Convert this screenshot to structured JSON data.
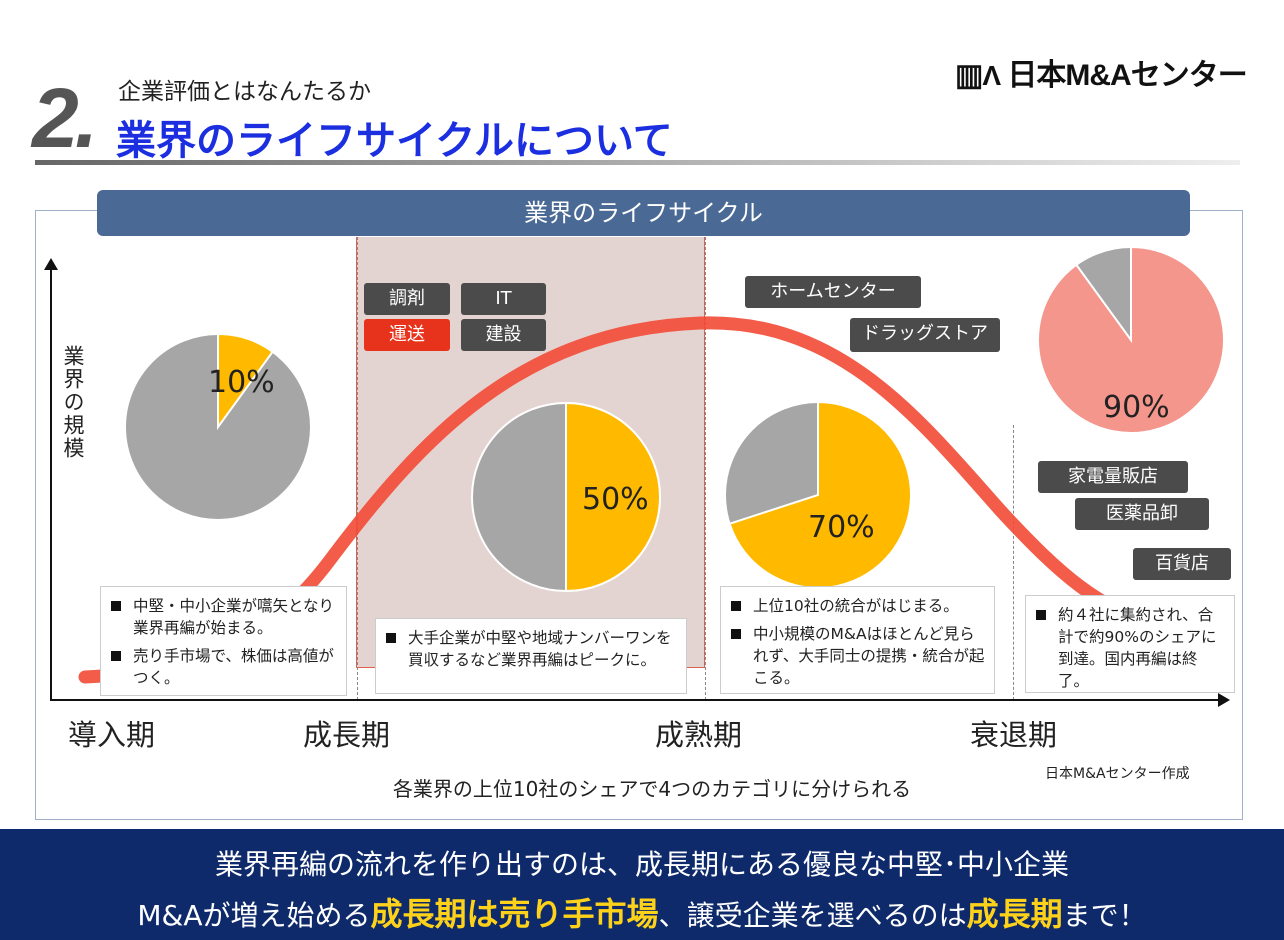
{
  "header": {
    "number": "2.",
    "subtitle": "企業評価とはなんたるか",
    "title": "業界のライフサイクルについて",
    "logo": "|||/\\ 日本M&Aセンター"
  },
  "diagram": {
    "heading": "業界のライフサイクル",
    "y_axis_label": "業界の規模",
    "phases": [
      {
        "label": "導入期",
        "color": "#222222"
      },
      {
        "label": "成長期",
        "color": "#e8331c"
      },
      {
        "label": "成熟期",
        "color": "#222222"
      },
      {
        "label": "衰退期",
        "color": "#222222"
      }
    ],
    "pies": [
      {
        "share_percent": 10,
        "label": "10%",
        "color": "#ffba00",
        "rest_color": "#a6a6a6"
      },
      {
        "share_percent": 50,
        "label": "50%",
        "color": "#ffba00",
        "rest_color": "#a6a6a6"
      },
      {
        "share_percent": 70,
        "label": "70%",
        "color": "#ffba00",
        "rest_color": "#a6a6a6"
      },
      {
        "share_percent": 90,
        "label": "90%",
        "color": "#f4968c",
        "rest_color": "#a6a6a6"
      }
    ],
    "growth_tags": [
      {
        "label": "調剤",
        "highlight": false
      },
      {
        "label": "IT",
        "highlight": false
      },
      {
        "label": "運送",
        "highlight": true
      },
      {
        "label": "建設",
        "highlight": false
      }
    ],
    "mature_tags": [
      "ホームセンター",
      "ドラッグストア"
    ],
    "decline_tags": [
      "家電量販店",
      "医薬品卸",
      "百貨店"
    ],
    "notes": [
      [
        "中堅・中小企業が嚆矢となり業界再編が始まる。",
        "売り手市場で、株価は高値がつく。"
      ],
      [
        "大手企業が中堅や地域ナンバーワンを買収するなど業界再編はピークに。"
      ],
      [
        "上位10社の統合がはじまる。",
        "中小規模のM&Aはほとんど見られず、大手同士の提携・統合が起こる。"
      ],
      [
        "約４社に集約され、合計で約90%のシェアに到達。国内再編は終了。"
      ]
    ],
    "caption": "各業界の上位10社のシェアで4つのカテゴリに分けられる",
    "credit": "日本M&Aセンター作成",
    "curve_color": "#f24a35"
  },
  "banner": {
    "line1": "業界再編の流れを作り出すのは、成長期にある優良な中堅･中小企業",
    "line2_a": "M&Aが増え始める",
    "line2_b": "成長期は売り手市場",
    "line2_c": "、譲受企業を選べるのは",
    "line2_d": "成長期",
    "line2_e": "まで！"
  }
}
